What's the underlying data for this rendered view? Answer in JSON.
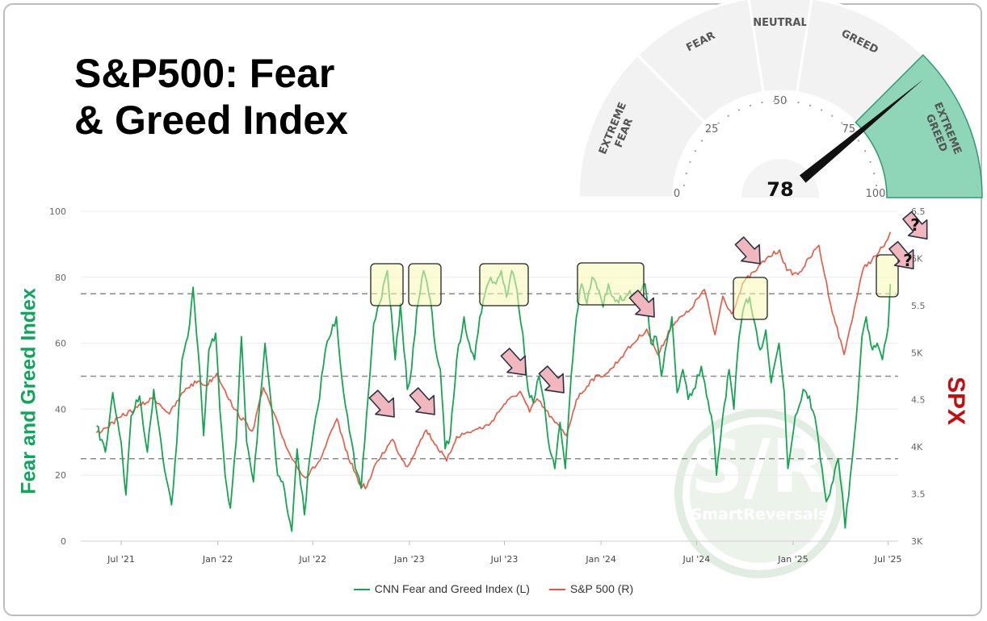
{
  "title_lines": [
    "S&P500: Fear",
    "& Greed Index"
  ],
  "gauge": {
    "zones": [
      "EXTREME FEAR",
      "FEAR",
      "NEUTRAL",
      "GREED",
      "EXTREME GREED"
    ],
    "ticks": [
      "0",
      "25",
      "50",
      "75",
      "100"
    ],
    "value": 78,
    "value_label": "78",
    "active_color": "#8fd6b8",
    "zone_color": "#f2f2f2"
  },
  "colors": {
    "fear_greed": "#15a552",
    "spx": "#e9553f",
    "annotation_box": "#f8f9b4",
    "annotation_arrow": "#f2b7bc"
  },
  "watermark": {
    "mark": "S/R",
    "text": "SmartReversals"
  },
  "chart_data": {
    "type": "line",
    "x_labels": [
      "Jul '21",
      "Jan '22",
      "Jul '22",
      "Jan '23",
      "Jul '23",
      "Jan '24",
      "Jul '24",
      "Jan '25",
      "Jul '25"
    ],
    "y_left": {
      "label": "Fear and Greed Index",
      "ticks": [
        "0",
        "20",
        "40",
        "60",
        "80",
        "100"
      ],
      "range": [
        0,
        100
      ]
    },
    "y_right": {
      "label": "SPX",
      "ticks": [
        "3K",
        "3.5",
        "4K",
        "4.5",
        "5K",
        "5.5",
        "6K",
        "6.5"
      ],
      "range": [
        3000,
        6500
      ]
    },
    "reference_lines": [
      25,
      50,
      75
    ],
    "legend": [
      "CNN Fear and Greed Index (L)",
      "S&P 500 (R)"
    ],
    "series": [
      {
        "name": "CNN Fear and Greed Index (L)",
        "axis": "left",
        "points": [
          [
            "2021-05-15",
            35
          ],
          [
            "2021-06-01",
            27
          ],
          [
            "2021-06-15",
            45
          ],
          [
            "2021-07-01",
            30
          ],
          [
            "2021-07-10",
            14
          ],
          [
            "2021-07-20",
            38
          ],
          [
            "2021-08-05",
            44
          ],
          [
            "2021-08-20",
            27
          ],
          [
            "2021-09-01",
            46
          ],
          [
            "2021-09-15",
            30
          ],
          [
            "2021-09-25",
            19
          ],
          [
            "2021-10-05",
            11
          ],
          [
            "2021-10-15",
            30
          ],
          [
            "2021-10-25",
            55
          ],
          [
            "2021-11-05",
            62
          ],
          [
            "2021-11-15",
            77
          ],
          [
            "2021-11-25",
            57
          ],
          [
            "2021-12-05",
            32
          ],
          [
            "2021-12-15",
            58
          ],
          [
            "2021-12-28",
            63
          ],
          [
            "2022-01-05",
            40
          ],
          [
            "2022-01-15",
            20
          ],
          [
            "2022-01-25",
            10
          ],
          [
            "2022-02-05",
            30
          ],
          [
            "2022-02-15",
            62
          ],
          [
            "2022-02-25",
            30
          ],
          [
            "2022-03-10",
            18
          ],
          [
            "2022-03-20",
            38
          ],
          [
            "2022-04-01",
            60
          ],
          [
            "2022-04-15",
            38
          ],
          [
            "2022-04-25",
            20
          ],
          [
            "2022-05-05",
            18
          ],
          [
            "2022-05-15",
            8
          ],
          [
            "2022-05-22",
            3
          ],
          [
            "2022-06-01",
            28
          ],
          [
            "2022-06-15",
            8
          ],
          [
            "2022-06-25",
            25
          ],
          [
            "2022-07-10",
            40
          ],
          [
            "2022-07-25",
            58
          ],
          [
            "2022-08-15",
            68
          ],
          [
            "2022-08-25",
            50
          ],
          [
            "2022-09-05",
            38
          ],
          [
            "2022-09-20",
            22
          ],
          [
            "2022-10-01",
            16
          ],
          [
            "2022-10-15",
            45
          ],
          [
            "2022-10-25",
            66
          ],
          [
            "2022-11-05",
            72
          ],
          [
            "2022-11-20",
            82
          ],
          [
            "2022-12-05",
            55
          ],
          [
            "2022-12-15",
            72
          ],
          [
            "2022-12-28",
            46
          ],
          [
            "2023-01-05",
            52
          ],
          [
            "2023-01-15",
            70
          ],
          [
            "2023-01-28",
            82
          ],
          [
            "2023-02-10",
            73
          ],
          [
            "2023-02-20",
            58
          ],
          [
            "2023-03-01",
            52
          ],
          [
            "2023-03-10",
            28
          ],
          [
            "2023-03-20",
            32
          ],
          [
            "2023-04-01",
            55
          ],
          [
            "2023-04-15",
            68
          ],
          [
            "2023-04-25",
            60
          ],
          [
            "2023-05-05",
            55
          ],
          [
            "2023-05-15",
            68
          ],
          [
            "2023-05-25",
            75
          ],
          [
            "2023-06-05",
            80
          ],
          [
            "2023-06-15",
            78
          ],
          [
            "2023-06-25",
            82
          ],
          [
            "2023-07-05",
            74
          ],
          [
            "2023-07-15",
            82
          ],
          [
            "2023-07-25",
            76
          ],
          [
            "2023-08-05",
            63
          ],
          [
            "2023-08-15",
            46
          ],
          [
            "2023-08-25",
            42
          ],
          [
            "2023-09-05",
            50
          ],
          [
            "2023-09-15",
            42
          ],
          [
            "2023-09-25",
            28
          ],
          [
            "2023-10-05",
            22
          ],
          [
            "2023-10-15",
            36
          ],
          [
            "2023-10-25",
            22
          ],
          [
            "2023-11-05",
            50
          ],
          [
            "2023-11-15",
            68
          ],
          [
            "2023-11-25",
            78
          ],
          [
            "2023-12-05",
            72
          ],
          [
            "2023-12-15",
            80
          ],
          [
            "2023-12-28",
            76
          ],
          [
            "2024-01-05",
            71
          ],
          [
            "2024-01-15",
            78
          ],
          [
            "2024-01-25",
            74
          ],
          [
            "2024-02-10",
            73
          ],
          [
            "2024-02-25",
            76
          ],
          [
            "2024-03-10",
            72
          ],
          [
            "2024-03-25",
            78
          ],
          [
            "2024-04-05",
            60
          ],
          [
            "2024-04-15",
            62
          ],
          [
            "2024-04-25",
            50
          ],
          [
            "2024-05-05",
            60
          ],
          [
            "2024-05-15",
            68
          ],
          [
            "2024-05-25",
            45
          ],
          [
            "2024-06-05",
            52
          ],
          [
            "2024-06-15",
            43
          ],
          [
            "2024-06-25",
            46
          ],
          [
            "2024-07-10",
            53
          ],
          [
            "2024-07-20",
            44
          ],
          [
            "2024-08-01",
            35
          ],
          [
            "2024-08-08",
            20
          ],
          [
            "2024-08-20",
            38
          ],
          [
            "2024-09-01",
            52
          ],
          [
            "2024-09-10",
            40
          ],
          [
            "2024-09-20",
            62
          ],
          [
            "2024-10-01",
            72
          ],
          [
            "2024-10-10",
            74
          ],
          [
            "2024-10-20",
            66
          ],
          [
            "2024-10-30",
            58
          ],
          [
            "2024-11-10",
            64
          ],
          [
            "2024-11-20",
            48
          ],
          [
            "2024-12-05",
            60
          ],
          [
            "2024-12-15",
            45
          ],
          [
            "2024-12-22",
            22
          ],
          [
            "2025-01-05",
            38
          ],
          [
            "2025-01-20",
            46
          ],
          [
            "2025-02-01",
            44
          ],
          [
            "2025-02-15",
            34
          ],
          [
            "2025-02-25",
            22
          ],
          [
            "2025-03-05",
            12
          ],
          [
            "2025-03-15",
            17
          ],
          [
            "2025-03-28",
            25
          ],
          [
            "2025-04-05",
            14
          ],
          [
            "2025-04-10",
            4
          ],
          [
            "2025-04-20",
            20
          ],
          [
            "2025-05-01",
            37
          ],
          [
            "2025-05-12",
            62
          ],
          [
            "2025-05-20",
            68
          ],
          [
            "2025-06-01",
            58
          ],
          [
            "2025-06-10",
            60
          ],
          [
            "2025-06-20",
            55
          ],
          [
            "2025-07-01",
            65
          ],
          [
            "2025-07-05",
            78
          ]
        ]
      },
      {
        "name": "S&P 500 (R)",
        "axis": "right",
        "points": [
          [
            "2021-05-15",
            4150
          ],
          [
            "2021-06-01",
            4200
          ],
          [
            "2021-07-01",
            4320
          ],
          [
            "2021-08-01",
            4420
          ],
          [
            "2021-09-01",
            4520
          ],
          [
            "2021-10-01",
            4350
          ],
          [
            "2021-11-01",
            4620
          ],
          [
            "2021-11-25",
            4700
          ],
          [
            "2021-12-10",
            4650
          ],
          [
            "2021-12-30",
            4780
          ],
          [
            "2022-01-15",
            4600
          ],
          [
            "2022-02-01",
            4400
          ],
          [
            "2022-03-08",
            4170
          ],
          [
            "2022-03-29",
            4630
          ],
          [
            "2022-04-15",
            4390
          ],
          [
            "2022-05-01",
            4150
          ],
          [
            "2022-05-20",
            3900
          ],
          [
            "2022-06-17",
            3670
          ],
          [
            "2022-07-15",
            3860
          ],
          [
            "2022-08-16",
            4300
          ],
          [
            "2022-09-01",
            3970
          ],
          [
            "2022-09-30",
            3590
          ],
          [
            "2022-10-12",
            3580
          ],
          [
            "2022-11-01",
            3850
          ],
          [
            "2022-11-30",
            4080
          ],
          [
            "2022-12-15",
            3900
          ],
          [
            "2022-12-28",
            3790
          ],
          [
            "2023-01-15",
            3990
          ],
          [
            "2023-02-02",
            4180
          ],
          [
            "2023-03-13",
            3850
          ],
          [
            "2023-04-01",
            4110
          ],
          [
            "2023-05-01",
            4170
          ],
          [
            "2023-06-01",
            4230
          ],
          [
            "2023-06-30",
            4450
          ],
          [
            "2023-07-31",
            4590
          ],
          [
            "2023-08-18",
            4370
          ],
          [
            "2023-09-01",
            4510
          ],
          [
            "2023-10-05",
            4260
          ],
          [
            "2023-10-27",
            4120
          ],
          [
            "2023-11-15",
            4500
          ],
          [
            "2023-12-15",
            4720
          ],
          [
            "2024-01-15",
            4790
          ],
          [
            "2024-02-15",
            5000
          ],
          [
            "2024-03-28",
            5250
          ],
          [
            "2024-04-19",
            4970
          ],
          [
            "2024-05-15",
            5300
          ],
          [
            "2024-06-15",
            5430
          ],
          [
            "2024-07-16",
            5670
          ],
          [
            "2024-08-05",
            5190
          ],
          [
            "2024-08-20",
            5600
          ],
          [
            "2024-09-06",
            5410
          ],
          [
            "2024-09-30",
            5760
          ],
          [
            "2024-10-20",
            5860
          ],
          [
            "2024-11-11",
            6000
          ],
          [
            "2024-12-06",
            6090
          ],
          [
            "2024-12-20",
            5870
          ],
          [
            "2025-01-10",
            5830
          ],
          [
            "2025-02-19",
            6140
          ],
          [
            "2025-03-13",
            5520
          ],
          [
            "2025-04-08",
            4980
          ],
          [
            "2025-04-20",
            5280
          ],
          [
            "2025-05-15",
            5900
          ],
          [
            "2025-06-10",
            6040
          ],
          [
            "2025-06-30",
            6200
          ],
          [
            "2025-07-05",
            6280
          ]
        ]
      }
    ]
  }
}
